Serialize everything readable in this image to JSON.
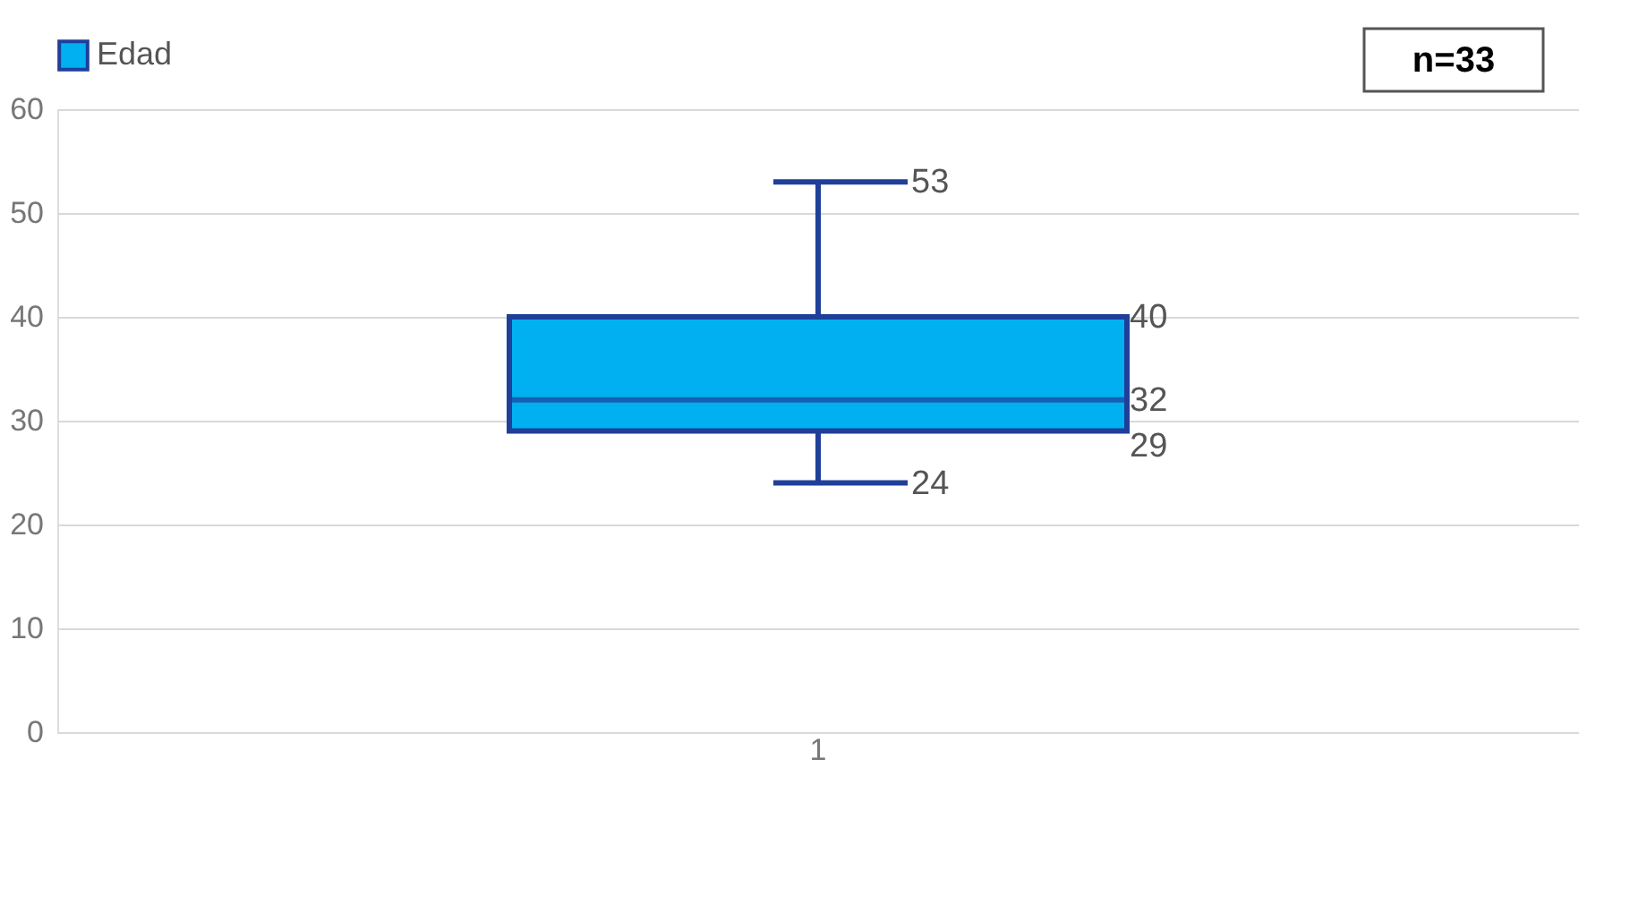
{
  "chart_data": {
    "type": "box",
    "categories": [
      "1"
    ],
    "series": [
      {
        "name": "Edad",
        "color": "#00b0f0",
        "boxes": [
          {
            "low": 24,
            "q1": 29,
            "median": 32,
            "q3": 40,
            "high": 53
          }
        ]
      }
    ],
    "ylim": [
      0,
      60
    ],
    "yticks": [
      0,
      10,
      20,
      30,
      40,
      50,
      60
    ],
    "grid": "y",
    "legend": "top",
    "annotations": [
      "n=33",
      {
        "text": "53",
        "x": "1",
        "y": 53
      },
      "40",
      "32",
      "29",
      {
        "text": "24",
        "x": "1",
        "y": 24
      }
    ]
  }
}
